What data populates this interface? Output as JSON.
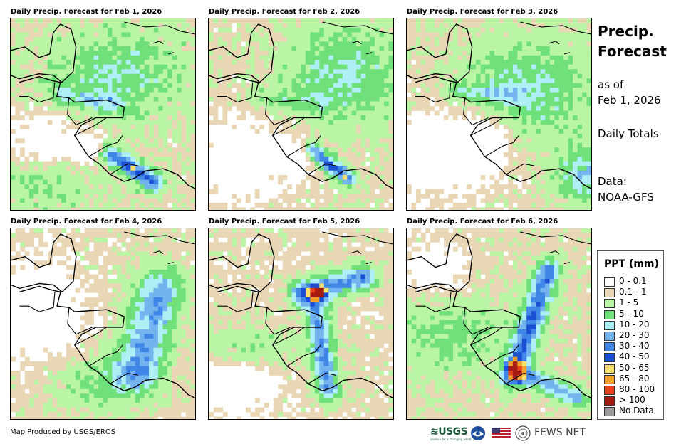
{
  "panels": [
    {
      "title": "Daily Precip. Forecast for Feb 1, 2026"
    },
    {
      "title": "Daily Precip. Forecast for Feb 2, 2026"
    },
    {
      "title": "Daily Precip. Forecast for Feb 3, 2026"
    },
    {
      "title": "Daily Precip. Forecast for Feb 4, 2026"
    },
    {
      "title": "Daily Precip. Forecast for Feb 5, 2026"
    },
    {
      "title": "Daily Precip. Forecast for Feb 6, 2026"
    }
  ],
  "sidebar": {
    "title_line1": "Precip.",
    "title_line2": "Forecast",
    "asof_line1": "as of",
    "asof_line2": "Feb 1, 2026",
    "totals": "Daily Totals",
    "data_line1": "Data:",
    "data_line2": "NOAA-GFS"
  },
  "legend": {
    "title": "PPT (mm)",
    "items": [
      {
        "label": "0 - 0.1",
        "color": "#ffffff"
      },
      {
        "label": "0.1 - 1",
        "color": "#e9d6b4"
      },
      {
        "label": "1 - 5",
        "color": "#b9f5a4"
      },
      {
        "label": "5 - 10",
        "color": "#6fe07a"
      },
      {
        "label": "10 - 20",
        "color": "#aeeef5"
      },
      {
        "label": "20 - 30",
        "color": "#74b4ee"
      },
      {
        "label": "30 - 40",
        "color": "#3f86e6"
      },
      {
        "label": "40 - 50",
        "color": "#1a4fd4"
      },
      {
        "label": "50 - 65",
        "color": "#f7e06a"
      },
      {
        "label": "65 - 80",
        "color": "#f2a12a"
      },
      {
        "label": "80 - 100",
        "color": "#e4401a"
      },
      {
        "label": "> 100",
        "color": "#a61a12"
      },
      {
        "label": "No Data",
        "color": "#9a9a9a"
      }
    ]
  },
  "footer": {
    "credit": "Map Produced by USGS/EROS",
    "usgs": "≋USGS",
    "usgs_tagline": "science for a changing world",
    "fews": "FEWS NET"
  }
}
